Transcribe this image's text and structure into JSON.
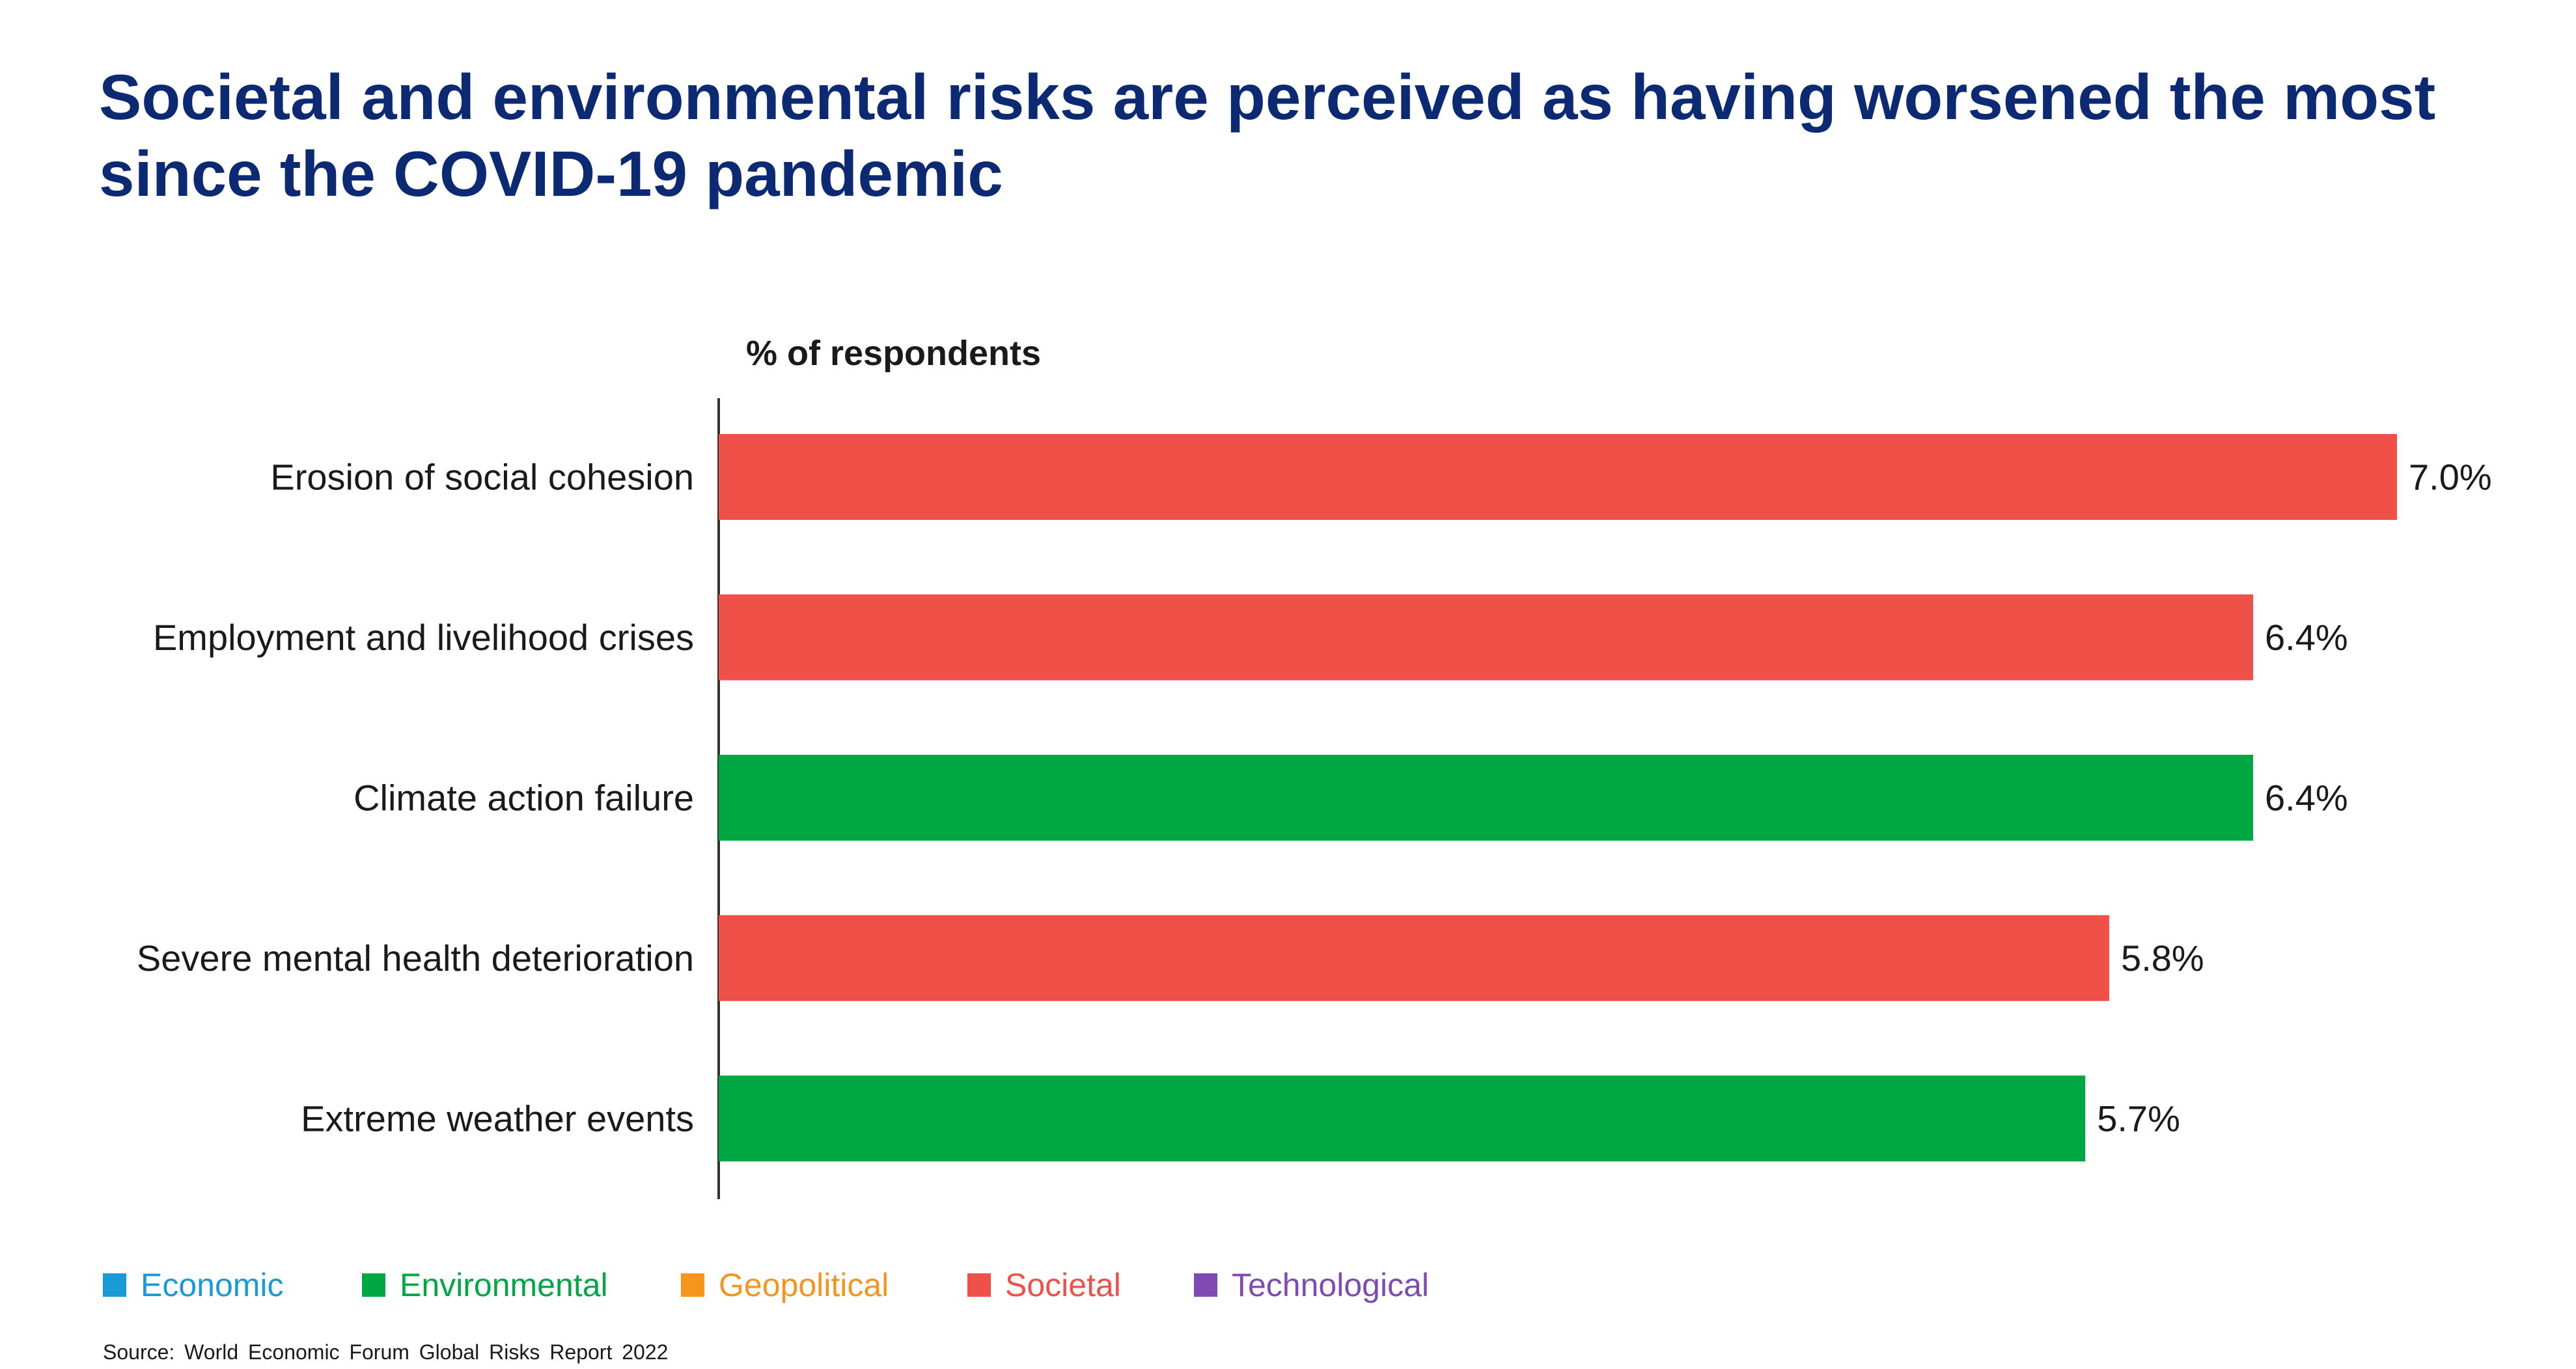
{
  "title": "Societal and environmental risks are perceived as having worsened the most since the COVID-19 pandemic",
  "source": "Source: World Economic Forum Global Risks Report 2022",
  "colors": {
    "Economic": "#1a9ad6",
    "Environmental": "#00a844",
    "Geopolitical": "#f7941d",
    "Societal": "#ef5048",
    "Technological": "#7f4bb2",
    "title": "#0b2a73",
    "axis": "#333333"
  },
  "legend": [
    {
      "label": "Economic",
      "icon": "square-swatch"
    },
    {
      "label": "Environmental",
      "icon": "square-swatch"
    },
    {
      "label": "Geopolitical",
      "icon": "square-swatch"
    },
    {
      "label": "Societal",
      "icon": "square-swatch"
    },
    {
      "label": "Technological",
      "icon": "square-swatch"
    }
  ],
  "chart_data": {
    "type": "bar",
    "orientation": "horizontal",
    "title": "Societal and environmental risks are perceived as having worsened the most since the COVID-19 pandemic",
    "xlabel": "% of respondents",
    "ylabel": "",
    "xlim": [
      0,
      7.0
    ],
    "grid": false,
    "legend_position": "bottom-left",
    "categories": [
      "Erosion of social cohesion",
      "Employment and livelihood crises",
      "Climate action failure",
      "Severe mental health deterioration",
      "Extreme weather events"
    ],
    "values": [
      7.0,
      6.4,
      6.4,
      5.8,
      5.7
    ],
    "value_labels": [
      "7.0%",
      "6.4%",
      "6.4%",
      "5.8%",
      "5.7%"
    ],
    "risk_category": [
      "Societal",
      "Societal",
      "Environmental",
      "Societal",
      "Environmental"
    ]
  }
}
